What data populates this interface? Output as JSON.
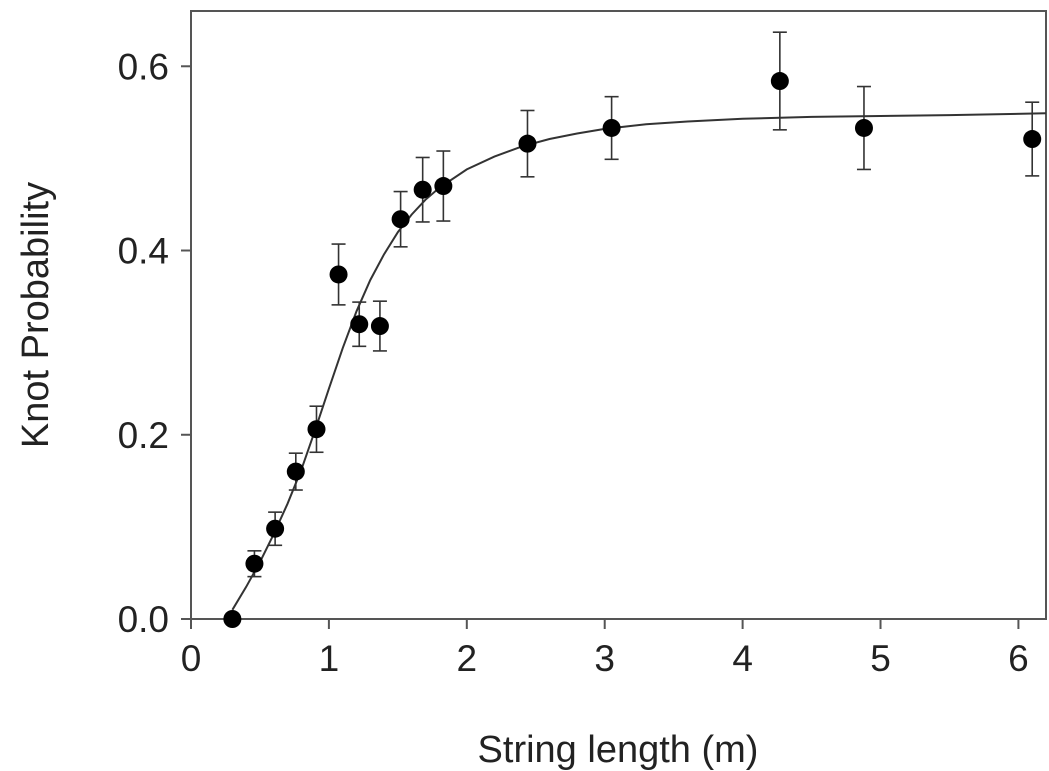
{
  "chart_data": {
    "type": "scatter",
    "title": "",
    "xlabel": "String length (m)",
    "ylabel": "Knot Probability",
    "xlim": [
      0,
      6.2
    ],
    "ylim": [
      0,
      0.66
    ],
    "xticks": [
      "0",
      "1",
      "2",
      "3",
      "4",
      "5",
      "6"
    ],
    "yticks": [
      "0.0",
      "0.2",
      "0.4",
      "0.6"
    ],
    "grid": false,
    "legend": "none",
    "points": [
      {
        "x": 0.3,
        "y": 0.0,
        "err": 0.0
      },
      {
        "x": 0.46,
        "y": 0.06,
        "err": 0.014
      },
      {
        "x": 0.61,
        "y": 0.098,
        "err": 0.018
      },
      {
        "x": 0.76,
        "y": 0.16,
        "err": 0.02
      },
      {
        "x": 0.91,
        "y": 0.206,
        "err": 0.025
      },
      {
        "x": 1.07,
        "y": 0.374,
        "err": 0.033
      },
      {
        "x": 1.22,
        "y": 0.32,
        "err": 0.024
      },
      {
        "x": 1.37,
        "y": 0.318,
        "err": 0.027
      },
      {
        "x": 1.52,
        "y": 0.434,
        "err": 0.03
      },
      {
        "x": 1.68,
        "y": 0.466,
        "err": 0.035
      },
      {
        "x": 1.83,
        "y": 0.47,
        "err": 0.038
      },
      {
        "x": 2.44,
        "y": 0.516,
        "err": 0.036
      },
      {
        "x": 3.05,
        "y": 0.533,
        "err": 0.034
      },
      {
        "x": 4.27,
        "y": 0.584,
        "err": 0.053
      },
      {
        "x": 4.88,
        "y": 0.533,
        "err": 0.045
      },
      {
        "x": 6.1,
        "y": 0.521,
        "err": 0.04
      }
    ],
    "fit_curve": {
      "x": [
        0.3,
        0.4,
        0.5,
        0.6,
        0.7,
        0.8,
        0.9,
        1.0,
        1.1,
        1.2,
        1.3,
        1.4,
        1.5,
        1.6,
        1.7,
        1.8,
        2.0,
        2.2,
        2.4,
        2.6,
        2.8,
        3.0,
        3.3,
        3.6,
        4.0,
        4.5,
        5.0,
        5.5,
        6.2
      ],
      "y": [
        0.01,
        0.035,
        0.062,
        0.092,
        0.125,
        0.162,
        0.205,
        0.25,
        0.294,
        0.334,
        0.368,
        0.396,
        0.42,
        0.439,
        0.455,
        0.468,
        0.488,
        0.502,
        0.513,
        0.521,
        0.527,
        0.532,
        0.537,
        0.54,
        0.543,
        0.545,
        0.546,
        0.547,
        0.549
      ]
    },
    "colors": {
      "points": "#000000",
      "curve": "#333333",
      "axes": "#555555"
    }
  }
}
